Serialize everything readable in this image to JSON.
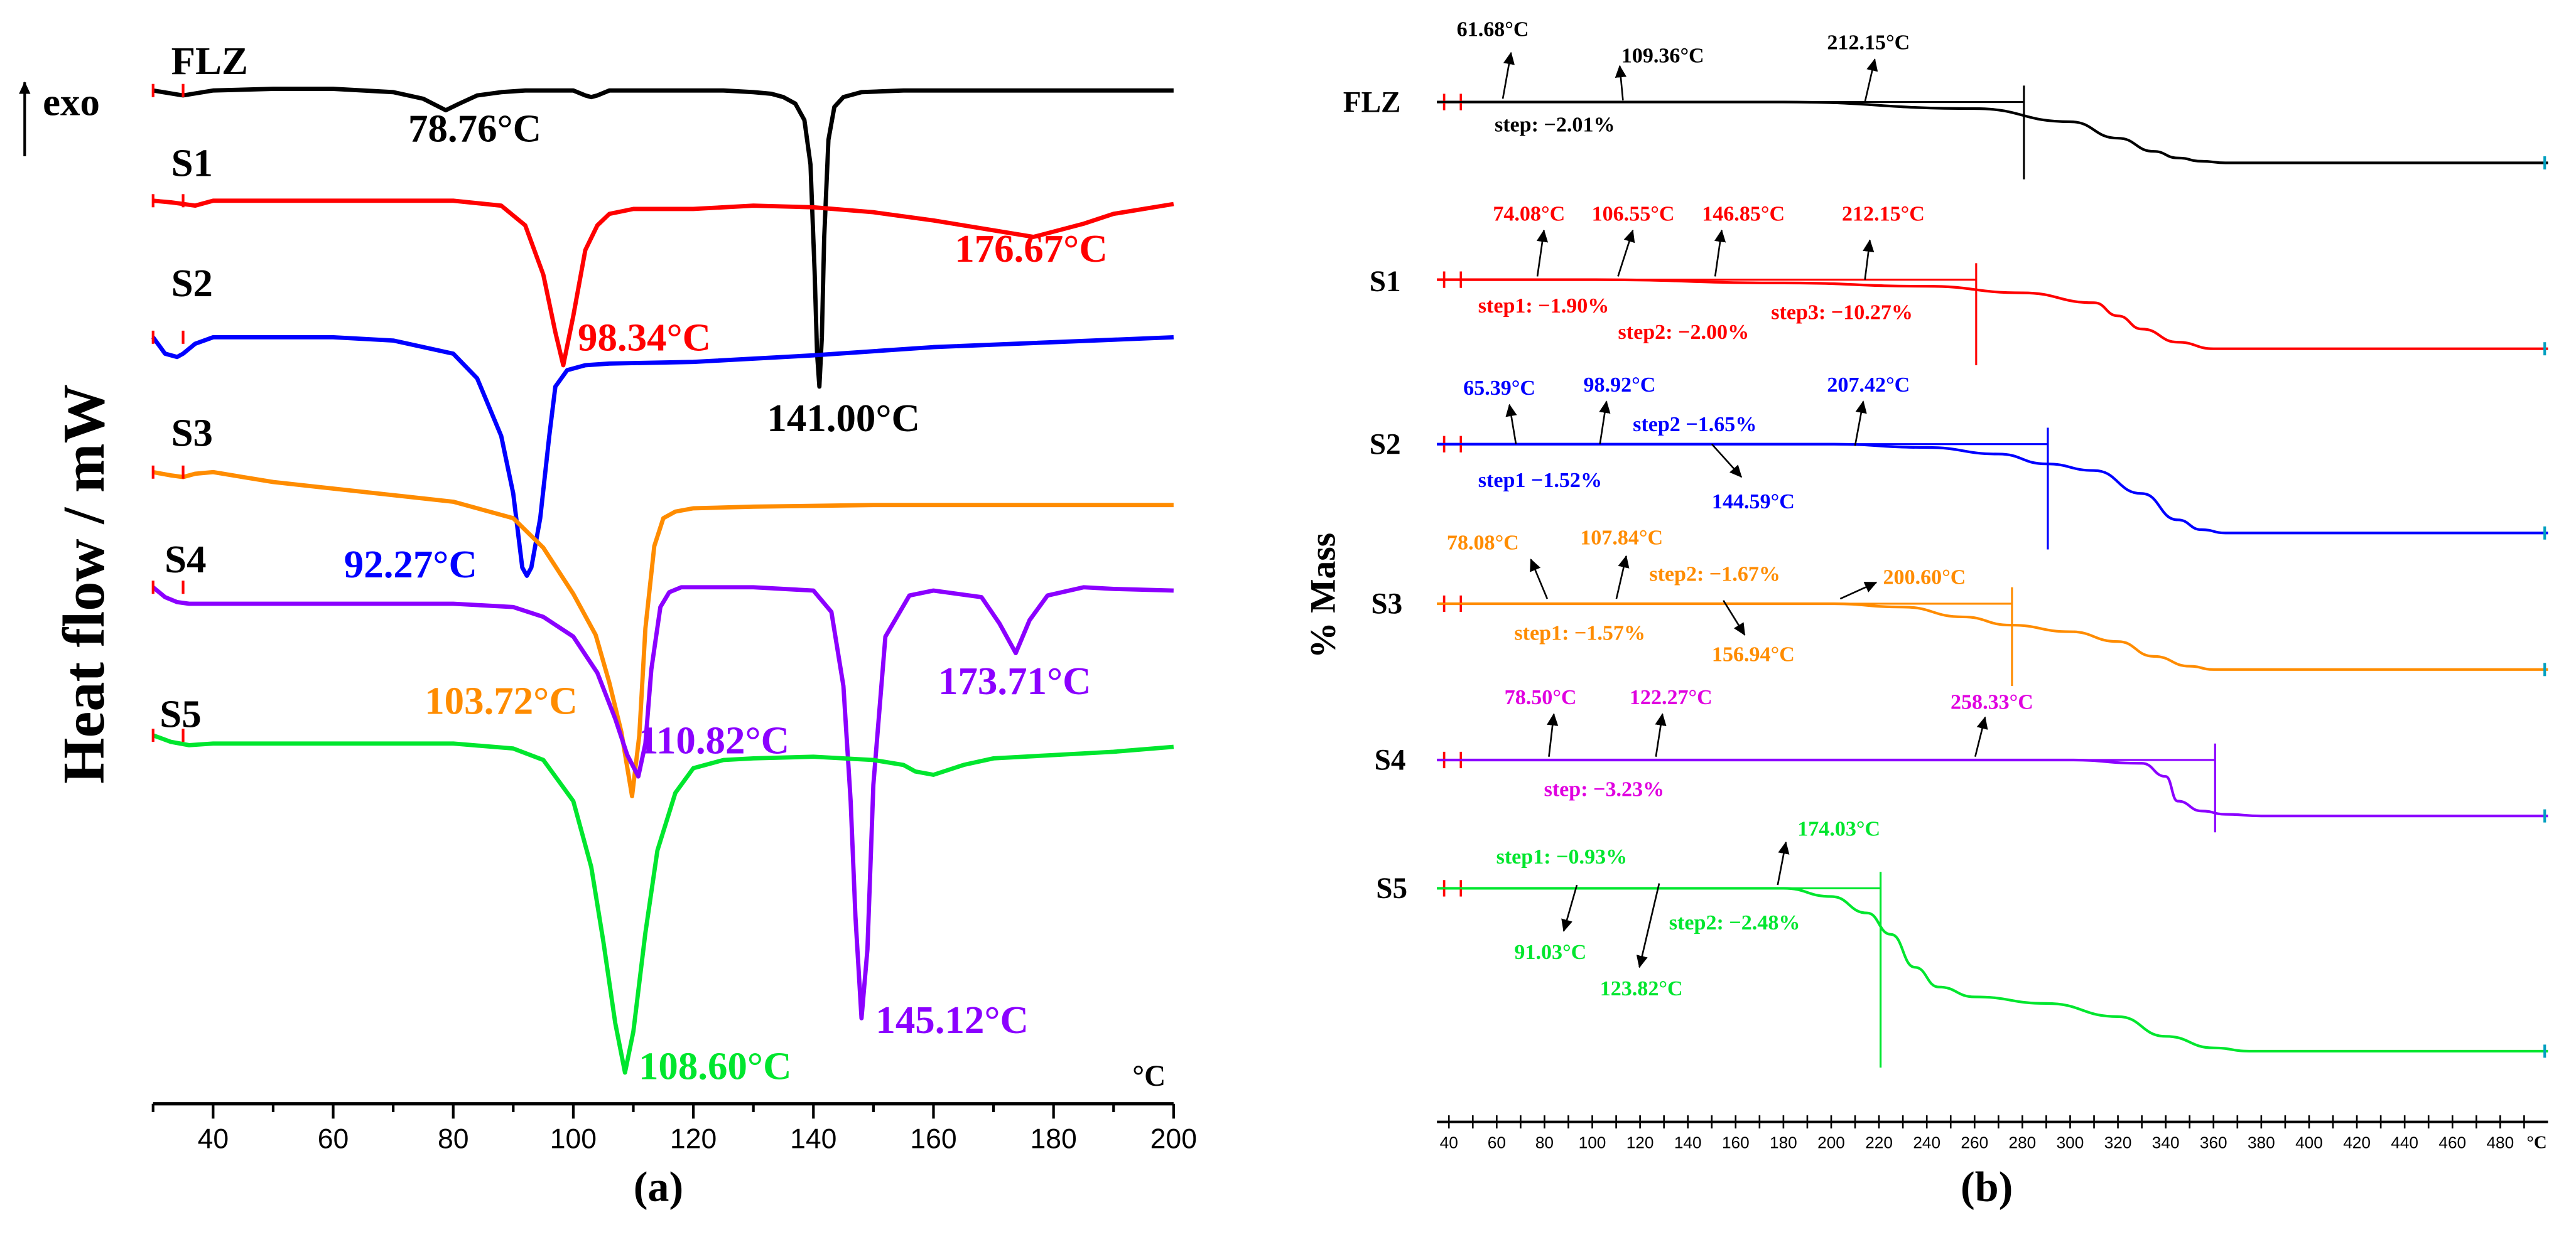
{
  "colors": {
    "FLZ": "#000000",
    "S1": "#ff0000",
    "S2": "#0000ff",
    "S3": "#ff8c00",
    "S4": "#8b00ff",
    "S4_labels": "#e000e0",
    "S5": "#00e62e",
    "axis": "#000000",
    "end_marker": "#00a0c0"
  },
  "panel_a": {
    "caption": "(a)",
    "ylabel": "Heat flow / mW",
    "exo_label": "exo",
    "unit_label": "°C"
  },
  "panel_b": {
    "caption": "(b)",
    "ylabel": "% Mass",
    "unit_label": "°C"
  },
  "chart_data": [
    {
      "id": "dsc",
      "type": "line",
      "title": "",
      "xlabel": "",
      "ylabel": "Heat flow / mW",
      "xlim": [
        30,
        200
      ],
      "xticks": [
        40,
        60,
        80,
        100,
        120,
        140,
        160,
        180,
        200
      ],
      "grid": false,
      "series": [
        {
          "name": "FLZ",
          "baseline": 55,
          "x": [
            30,
            35,
            40,
            50,
            60,
            70,
            75,
            78.76,
            81,
            84,
            88,
            92,
            96,
            100,
            102,
            103,
            104,
            106,
            110,
            120,
            125,
            130,
            133,
            135,
            137,
            138.5,
            139.5,
            140.2,
            140.6,
            141,
            141.4,
            141.8,
            142.5,
            143.5,
            145,
            148,
            155,
            170,
            200
          ],
          "v": [
            0,
            -3,
            0,
            1,
            1,
            -1,
            -5,
            -12,
            -8,
            -3,
            -1,
            0,
            0,
            0,
            -3,
            -4,
            -3,
            0,
            0,
            0,
            0,
            -1,
            -2,
            -4,
            -8,
            -18,
            -45,
            -110,
            -160,
            -180,
            -150,
            -90,
            -30,
            -10,
            -4,
            -1,
            0,
            0,
            0
          ]
        },
        {
          "name": "S1",
          "baseline": 122,
          "x": [
            30,
            33,
            37,
            40,
            60,
            80,
            88,
            92,
            95,
            97,
            98.34,
            100,
            102,
            104,
            106,
            110,
            120,
            130,
            140,
            150,
            160,
            170,
            176.67,
            185,
            190,
            200
          ],
          "v": [
            0,
            -1,
            -3,
            0,
            0,
            0,
            -3,
            -15,
            -45,
            -80,
            -100,
            -70,
            -30,
            -15,
            -8,
            -5,
            -5,
            -3,
            -4,
            -7,
            -12,
            -18,
            -22,
            -14,
            -8,
            -2
          ]
        },
        {
          "name": "S2",
          "baseline": 205,
          "x": [
            30,
            32,
            34,
            35,
            37,
            40,
            50,
            60,
            70,
            80,
            84,
            88,
            90,
            91.5,
            92.27,
            93,
            94.5,
            96,
            97,
            99,
            102,
            106,
            120,
            140,
            160,
            200
          ],
          "v": [
            0,
            -10,
            -12,
            -10,
            -4,
            0,
            0,
            0,
            -2,
            -10,
            -25,
            -60,
            -95,
            -140,
            -145,
            -140,
            -110,
            -60,
            -30,
            -20,
            -17,
            -16,
            -15,
            -11,
            -6,
            0
          ]
        },
        {
          "name": "S3",
          "baseline": 287,
          "x": [
            30,
            33,
            35,
            37,
            40,
            50,
            60,
            70,
            80,
            90,
            95,
            100,
            103.72,
            106,
            108,
            109.8,
            111,
            112,
            113.5,
            115,
            117,
            120,
            130,
            150,
            170,
            200
          ],
          "v": [
            0,
            -2,
            -3,
            -1,
            0,
            -6,
            -10,
            -14,
            -18,
            -28,
            -46,
            -74,
            -99,
            -128,
            -158,
            -197,
            -160,
            -95,
            -45,
            -28,
            -24,
            -22,
            -21,
            -20,
            -20,
            -20
          ]
        },
        {
          "name": "S4",
          "baseline": 357,
          "x": [
            30,
            32,
            34,
            36,
            40,
            60,
            80,
            90,
            95,
            100,
            104,
            107,
            109,
            110.82,
            112,
            113,
            114.5,
            116,
            118,
            130,
            140,
            143,
            145,
            146.2,
            147,
            148,
            149,
            150,
            152,
            156,
            160,
            168,
            171,
            173.71,
            176,
            179,
            185,
            190,
            200
          ],
          "v": [
            0,
            -6,
            -9,
            -10,
            -10,
            -10,
            -10,
            -12,
            -18,
            -30,
            -52,
            -80,
            -102,
            -115,
            -95,
            -50,
            -12,
            -3,
            0,
            0,
            -2,
            -15,
            -60,
            -130,
            -200,
            -262,
            -220,
            -120,
            -30,
            -5,
            -2,
            -6,
            -22,
            -40,
            -20,
            -5,
            0,
            -1,
            -2
          ]
        },
        {
          "name": "S5",
          "baseline": 447,
          "x": [
            30,
            33,
            36,
            40,
            60,
            80,
            90,
            95,
            100,
            103,
            105,
            107,
            108.6,
            110,
            112,
            114,
            117,
            120,
            125,
            130,
            140,
            150,
            155,
            157,
            160,
            165,
            170,
            180,
            190,
            200
          ],
          "v": [
            0,
            -4,
            -6,
            -5,
            -5,
            -5,
            -8,
            -15,
            -40,
            -80,
            -125,
            -175,
            -205,
            -180,
            -120,
            -70,
            -35,
            -20,
            -15,
            -14,
            -13,
            -15,
            -18,
            -22,
            -24,
            -18,
            -14,
            -12,
            -10,
            -7
          ]
        }
      ],
      "annotations": [
        {
          "series": "FLZ",
          "text": "78.76°C"
        },
        {
          "series": "FLZ",
          "text": "141.00°C"
        },
        {
          "series": "S1",
          "text": "98.34°C"
        },
        {
          "series": "S1",
          "text": "176.67°C"
        },
        {
          "series": "S2",
          "text": "92.27°C"
        },
        {
          "series": "S3",
          "text": "103.72°C"
        },
        {
          "series": "S4",
          "text": "110.82°C"
        },
        {
          "series": "S4",
          "text": "173.71°C"
        },
        {
          "series": "S4",
          "text": "145.12°C"
        },
        {
          "series": "S5",
          "text": "108.60°C"
        }
      ]
    },
    {
      "id": "tga",
      "type": "line",
      "title": "",
      "xlabel": "",
      "ylabel": "% Mass",
      "xlim": [
        35,
        500
      ],
      "xticks": [
        40,
        60,
        80,
        100,
        120,
        140,
        160,
        180,
        200,
        220,
        240,
        260,
        280,
        300,
        320,
        340,
        360,
        380,
        400,
        420,
        440,
        460,
        480
      ],
      "grid": false,
      "series": [
        {
          "name": "FLZ",
          "baseline": 62,
          "x": [
            35,
            180,
            260,
            300,
            320,
            335,
            345,
            355,
            365,
            400,
            500
          ],
          "v": [
            0,
            0,
            -4,
            -12,
            -22,
            -30,
            -34,
            -36,
            -37,
            -37,
            -37
          ]
        },
        {
          "name": "S1",
          "baseline": 170,
          "x": [
            35,
            100,
            180,
            240,
            280,
            310,
            320,
            330,
            345,
            360,
            400,
            500
          ],
          "v": [
            0,
            0,
            -2,
            -4,
            -8,
            -14,
            -22,
            -30,
            -38,
            -42,
            -42,
            -42
          ]
        },
        {
          "name": "S2",
          "baseline": 270,
          "x": [
            35,
            200,
            240,
            270,
            290,
            310,
            330,
            345,
            355,
            365,
            370,
            500
          ],
          "v": [
            0,
            0,
            -2,
            -6,
            -12,
            -16,
            -30,
            -46,
            -52,
            -54,
            -54,
            -54
          ]
        },
        {
          "name": "S3",
          "baseline": 367,
          "x": [
            35,
            200,
            230,
            255,
            275,
            300,
            320,
            335,
            350,
            360,
            500
          ],
          "v": [
            0,
            0,
            -2,
            -8,
            -13,
            -17,
            -23,
            -32,
            -38,
            -40,
            -40
          ]
        },
        {
          "name": "S4",
          "baseline": 462,
          "x": [
            35,
            300,
            330,
            340,
            345,
            355,
            365,
            380,
            500
          ],
          "v": [
            0,
            0,
            -2,
            -10,
            -25,
            -31,
            -33,
            -34,
            -34
          ]
        },
        {
          "name": "S5",
          "baseline": 540,
          "x": [
            35,
            180,
            200,
            215,
            225,
            235,
            245,
            260,
            290,
            320,
            340,
            360,
            375,
            500
          ],
          "v": [
            0,
            0,
            -5,
            -15,
            -28,
            -48,
            -60,
            -66,
            -70,
            -78,
            -90,
            -97,
            -99,
            -99
          ]
        }
      ],
      "annotations": [
        {
          "series": "FLZ",
          "text": "61.68°C"
        },
        {
          "series": "FLZ",
          "text": "109.36°C"
        },
        {
          "series": "FLZ",
          "text": "212.15°C"
        },
        {
          "series": "FLZ",
          "text": "step: −2.01%"
        },
        {
          "series": "S1",
          "text": "74.08°C"
        },
        {
          "series": "S1",
          "text": "106.55°C"
        },
        {
          "series": "S1",
          "text": "146.85°C"
        },
        {
          "series": "S1",
          "text": "212.15°C"
        },
        {
          "series": "S1",
          "text": "step1: −1.90%"
        },
        {
          "series": "S1",
          "text": "step2: −2.00%"
        },
        {
          "series": "S1",
          "text": "step3: −10.27%"
        },
        {
          "series": "S2",
          "text": "65.39°C"
        },
        {
          "series": "S2",
          "text": "98.92°C"
        },
        {
          "series": "S2",
          "text": "step2 −1.65%"
        },
        {
          "series": "S2",
          "text": "207.42°C"
        },
        {
          "series": "S2",
          "text": "step1 −1.52%"
        },
        {
          "series": "S2",
          "text": "144.59°C"
        },
        {
          "series": "S3",
          "text": "78.08°C"
        },
        {
          "series": "S3",
          "text": "107.84°C"
        },
        {
          "series": "S3",
          "text": "step2: −1.67%"
        },
        {
          "series": "S3",
          "text": "200.60°C"
        },
        {
          "series": "S3",
          "text": "step1: −1.57%"
        },
        {
          "series": "S3",
          "text": "156.94°C"
        },
        {
          "series": "S4",
          "text": "78.50°C"
        },
        {
          "series": "S4",
          "text": "122.27°C"
        },
        {
          "series": "S4",
          "text": "258.33°C"
        },
        {
          "series": "S4",
          "text": "step: −3.23%"
        },
        {
          "series": "S5",
          "text": "step1: −0.93%"
        },
        {
          "series": "S5",
          "text": "174.03°C"
        },
        {
          "series": "S5",
          "text": "step2: −2.48%"
        },
        {
          "series": "S5",
          "text": "91.03°C"
        },
        {
          "series": "S5",
          "text": "123.82°C"
        }
      ]
    }
  ]
}
